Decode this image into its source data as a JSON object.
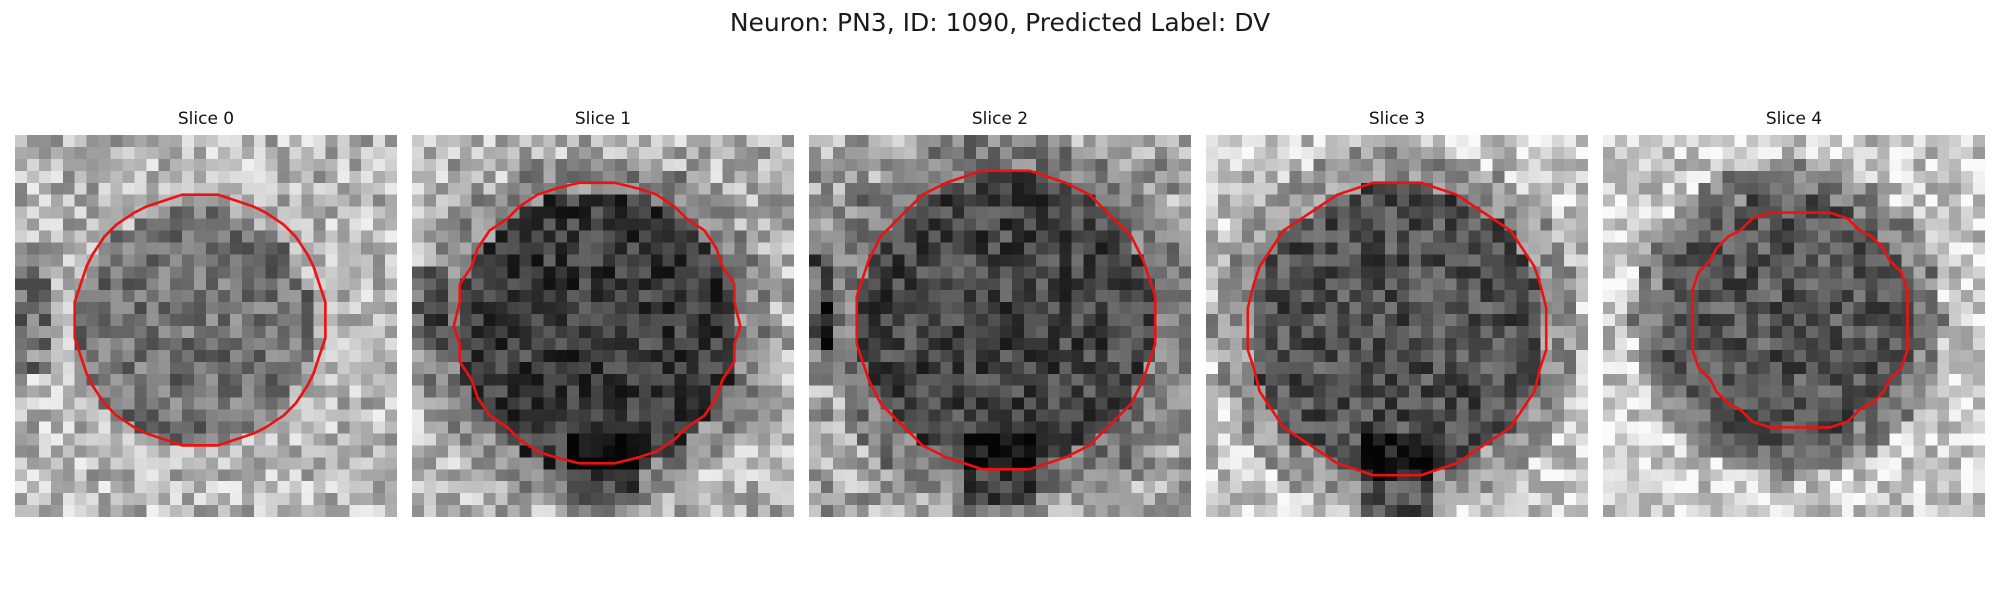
{
  "figure": {
    "title": "Neuron: PN3, ID: 1090, Predicted Label: DV"
  },
  "panels": [
    {
      "title": "Slice 0",
      "outline_color": "#ee1111"
    },
    {
      "title": "Slice 1",
      "outline_color": "#ee1111"
    },
    {
      "title": "Slice 2",
      "outline_color": "#ee1111"
    },
    {
      "title": "Slice 3",
      "outline_color": "#ee1111"
    },
    {
      "title": "Slice 4",
      "outline_color": "#ee1111"
    }
  ]
}
